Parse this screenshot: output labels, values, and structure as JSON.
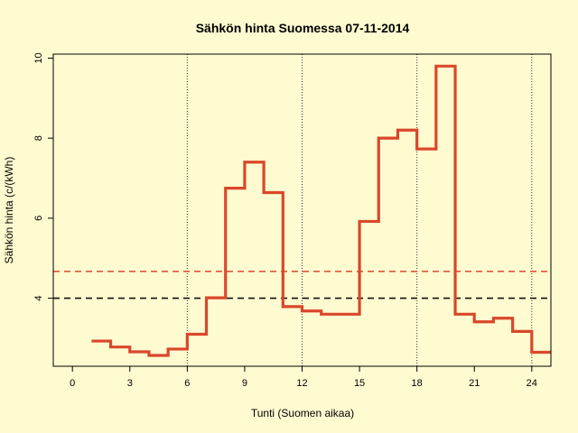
{
  "chart_data": {
    "type": "line",
    "step": true,
    "title": "Sähkön hinta Suomessa 07-11-2014",
    "xlabel": "Tunti (Suomen aikaa)",
    "ylabel": "Sähkön hinta (c/(kWh)",
    "xlim": [
      -1,
      25
    ],
    "ylim": [
      2.3,
      10.1
    ],
    "xticks": [
      0,
      3,
      6,
      9,
      12,
      15,
      18,
      21,
      24
    ],
    "yticks": [
      4,
      6,
      8,
      10
    ],
    "vlines": [
      6,
      12,
      18,
      24
    ],
    "series": [
      {
        "color": "#d9472b",
        "x": [
          1,
          2,
          3,
          4,
          5,
          6,
          7,
          8,
          9,
          10,
          11,
          12,
          13,
          14,
          15,
          16,
          17,
          18,
          19,
          20,
          21,
          22,
          23,
          24,
          25
        ],
        "values": [
          2.93,
          2.78,
          2.66,
          2.57,
          2.73,
          3.1,
          4.01,
          6.75,
          7.4,
          6.64,
          3.79,
          3.68,
          3.6,
          3.6,
          5.92,
          8.0,
          8.2,
          7.73,
          9.8,
          3.6,
          3.41,
          3.5,
          3.17,
          2.65,
          2.65
        ]
      }
    ],
    "hlines": [
      {
        "value": 4.0,
        "color": "#111111",
        "style": "dashed"
      },
      {
        "value": 4.67,
        "color": "#d9472b",
        "style": "dashed"
      }
    ],
    "grid": false
  },
  "colors": {
    "background": "#fffbd0",
    "series": "#d9472b",
    "axis": "#000000"
  }
}
